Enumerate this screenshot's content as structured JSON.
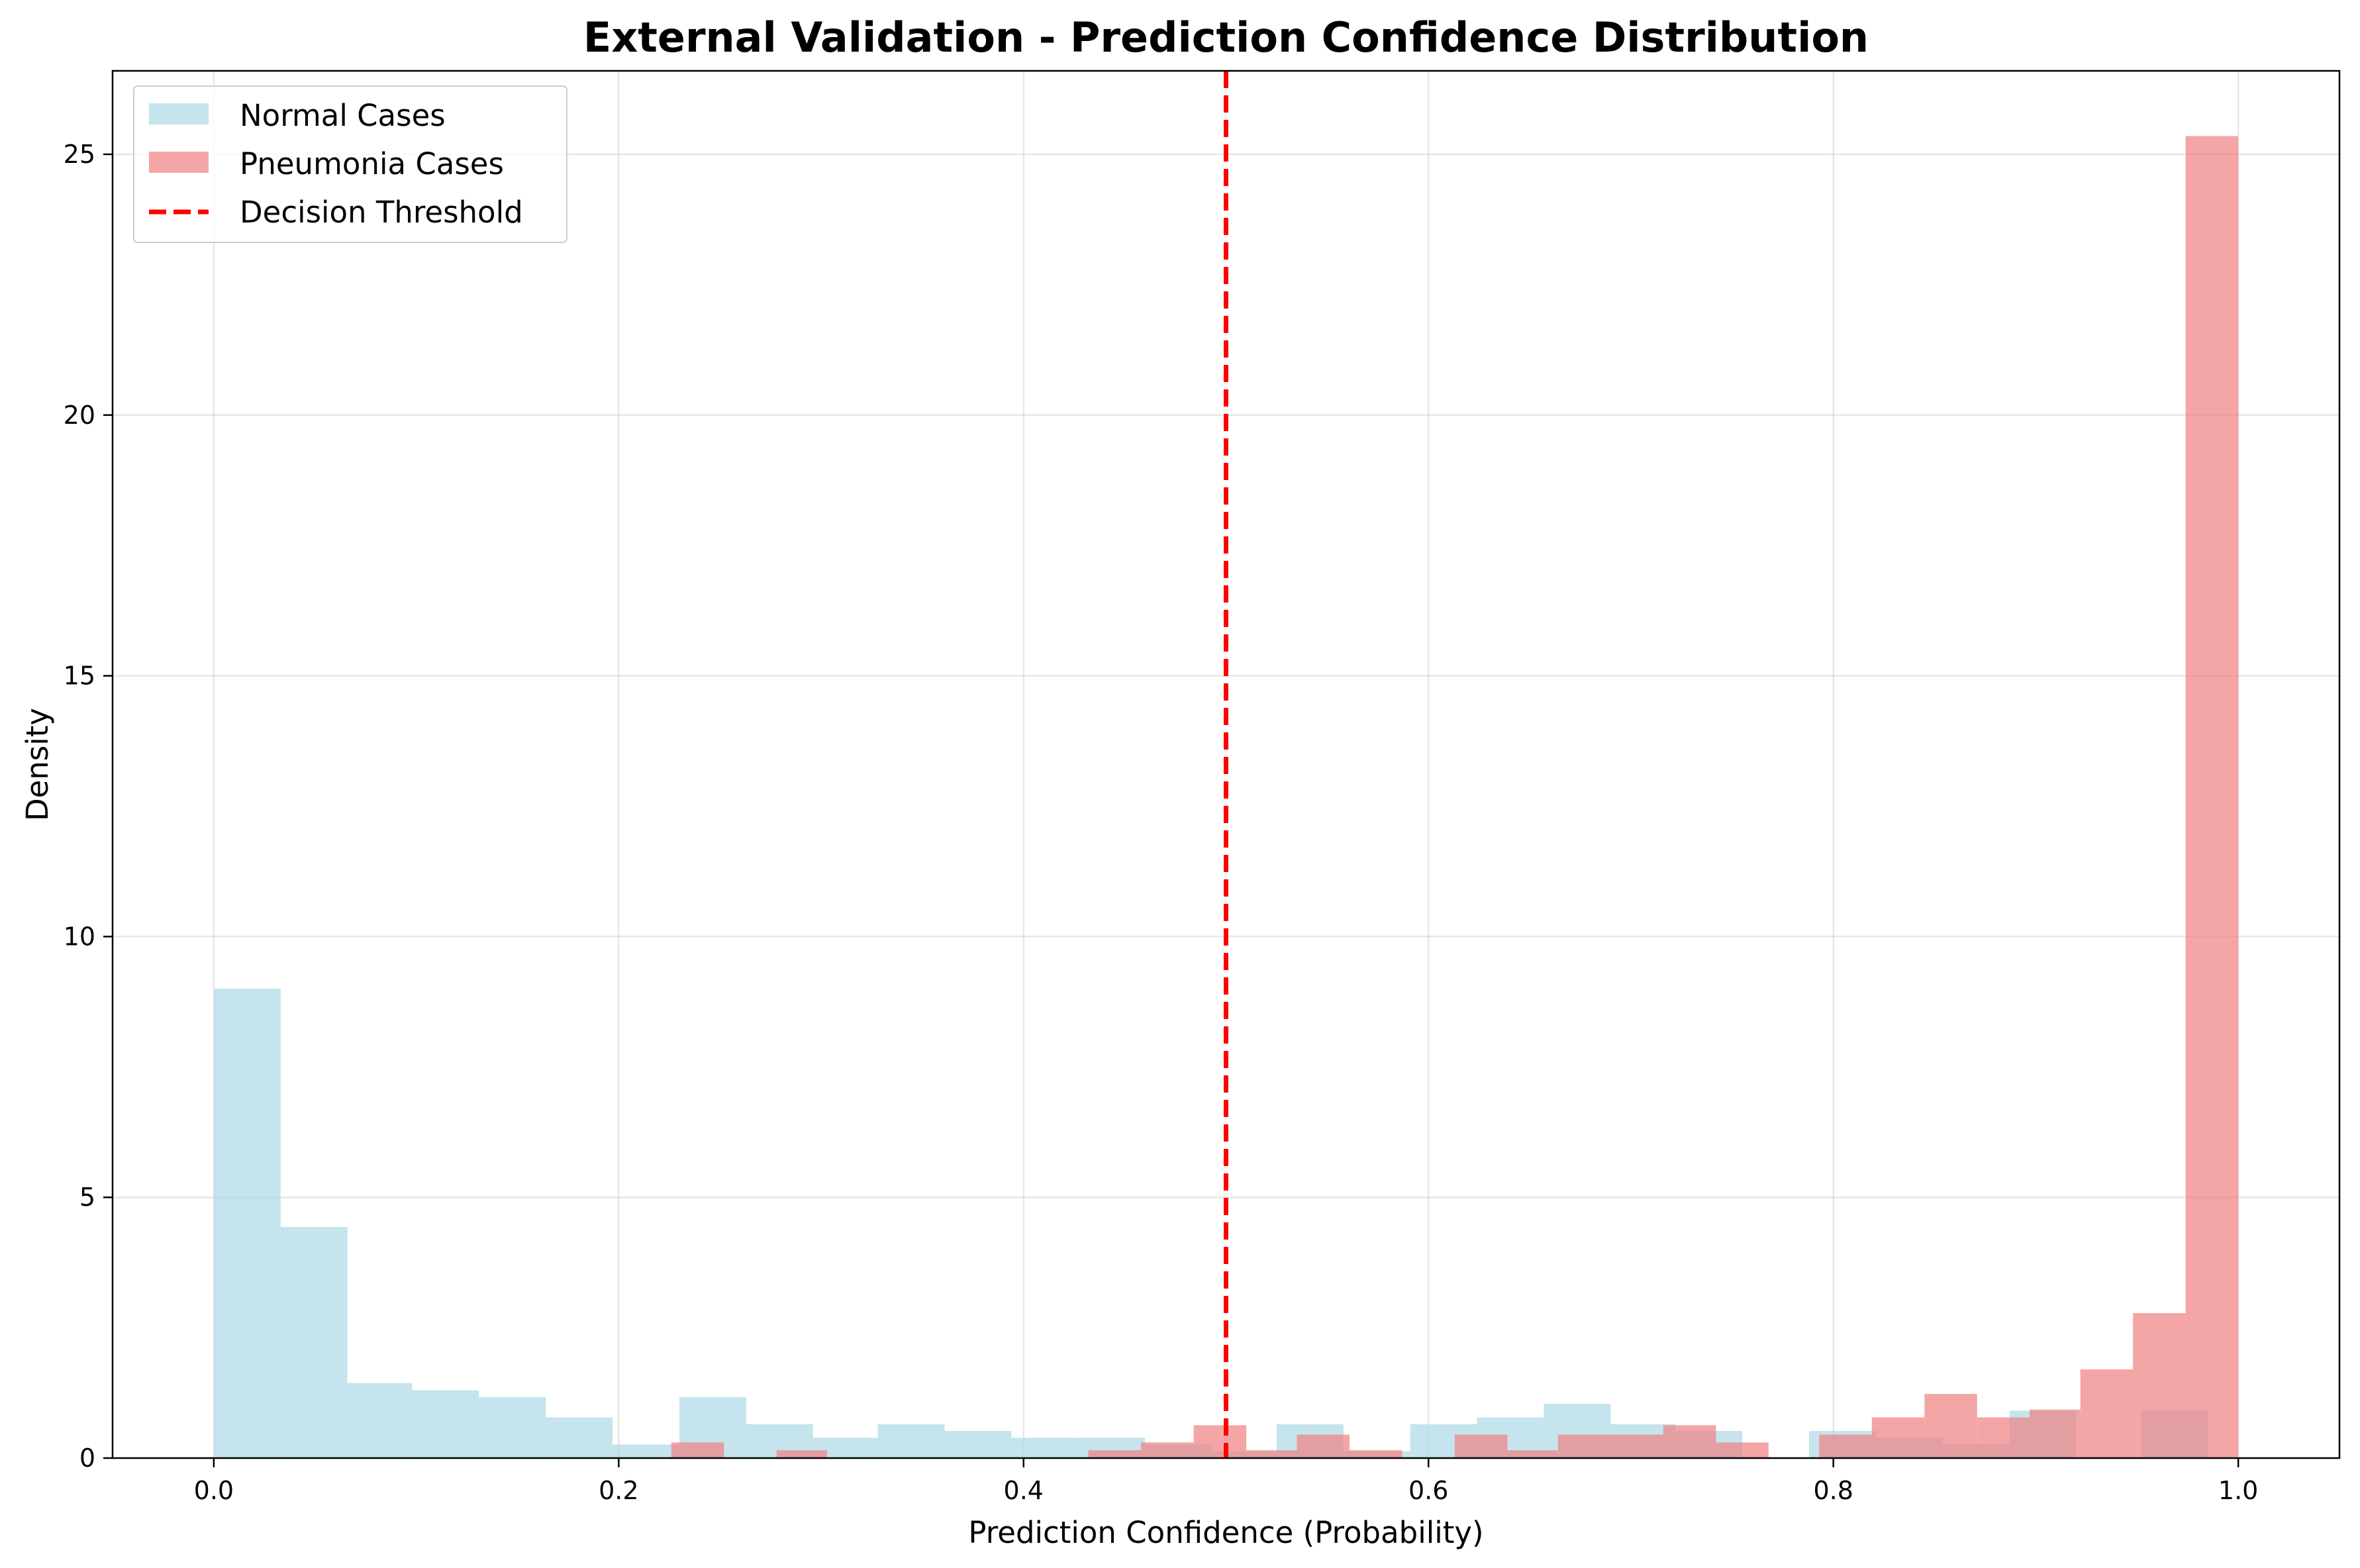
{
  "chart_data": {
    "type": "histogram",
    "title": "External Validation - Prediction Confidence Distribution",
    "xlabel": "Prediction Confidence (Probability)",
    "ylabel": "Density",
    "xlim": [
      -0.05,
      1.05
    ],
    "ylim": [
      0,
      26.6
    ],
    "xticks": [
      0.0,
      0.2,
      0.4,
      0.6,
      0.8,
      1.0
    ],
    "xtick_labels": [
      "0.0",
      "0.2",
      "0.4",
      "0.6",
      "0.8",
      "1.0"
    ],
    "yticks": [
      0,
      5,
      10,
      15,
      20,
      25
    ],
    "ytick_labels": [
      "0",
      "5",
      "10",
      "15",
      "20",
      "25"
    ],
    "grid": true,
    "legend_position": "top-left",
    "threshold": {
      "name": "Decision Threshold",
      "x": 0.5,
      "color": "#ff0000",
      "style": "dashed"
    },
    "series": [
      {
        "name": "Normal Cases",
        "color": "#add8e6",
        "opacity": 0.7,
        "bins": [
          [
            0.0,
            0.033,
            9.0
          ],
          [
            0.033,
            0.066,
            4.43
          ],
          [
            0.066,
            0.098,
            1.44
          ],
          [
            0.098,
            0.131,
            1.3
          ],
          [
            0.131,
            0.164,
            1.17
          ],
          [
            0.164,
            0.197,
            0.78
          ],
          [
            0.197,
            0.23,
            0.26
          ],
          [
            0.23,
            0.263,
            1.17
          ],
          [
            0.263,
            0.296,
            0.65
          ],
          [
            0.296,
            0.328,
            0.39
          ],
          [
            0.328,
            0.361,
            0.65
          ],
          [
            0.361,
            0.394,
            0.52
          ],
          [
            0.394,
            0.427,
            0.39
          ],
          [
            0.427,
            0.46,
            0.39
          ],
          [
            0.46,
            0.493,
            0.26
          ],
          [
            0.493,
            0.525,
            0.13
          ],
          [
            0.525,
            0.558,
            0.65
          ],
          [
            0.558,
            0.591,
            0.13
          ],
          [
            0.591,
            0.624,
            0.65
          ],
          [
            0.624,
            0.657,
            0.78
          ],
          [
            0.657,
            0.69,
            1.04
          ],
          [
            0.69,
            0.722,
            0.65
          ],
          [
            0.722,
            0.755,
            0.52
          ],
          [
            0.755,
            0.788,
            0.0
          ],
          [
            0.788,
            0.821,
            0.52
          ],
          [
            0.821,
            0.854,
            0.39
          ],
          [
            0.854,
            0.887,
            0.26
          ],
          [
            0.887,
            0.92,
            0.91
          ],
          [
            0.92,
            0.952,
            0.0
          ],
          [
            0.952,
            0.985,
            0.91
          ]
        ]
      },
      {
        "name": "Pneumonia Cases",
        "color": "#f08080",
        "opacity": 0.7,
        "bins": [
          [
            0.226,
            0.252,
            0.3
          ],
          [
            0.252,
            0.278,
            0.0
          ],
          [
            0.278,
            0.303,
            0.15
          ],
          [
            0.303,
            0.329,
            0.0
          ],
          [
            0.329,
            0.355,
            0.0
          ],
          [
            0.355,
            0.381,
            0.0
          ],
          [
            0.381,
            0.406,
            0.0
          ],
          [
            0.406,
            0.432,
            0.0
          ],
          [
            0.432,
            0.458,
            0.15
          ],
          [
            0.458,
            0.484,
            0.3
          ],
          [
            0.484,
            0.51,
            0.63
          ],
          [
            0.51,
            0.535,
            0.15
          ],
          [
            0.535,
            0.561,
            0.45
          ],
          [
            0.561,
            0.587,
            0.15
          ],
          [
            0.587,
            0.613,
            0.0
          ],
          [
            0.613,
            0.639,
            0.45
          ],
          [
            0.639,
            0.664,
            0.15
          ],
          [
            0.664,
            0.69,
            0.45
          ],
          [
            0.69,
            0.716,
            0.45
          ],
          [
            0.716,
            0.742,
            0.63
          ],
          [
            0.742,
            0.768,
            0.3
          ],
          [
            0.768,
            0.793,
            0.0
          ],
          [
            0.793,
            0.819,
            0.45
          ],
          [
            0.819,
            0.845,
            0.78
          ],
          [
            0.845,
            0.871,
            1.23
          ],
          [
            0.871,
            0.897,
            0.78
          ],
          [
            0.897,
            0.922,
            0.93
          ],
          [
            0.922,
            0.948,
            1.7
          ],
          [
            0.948,
            0.974,
            2.78
          ],
          [
            0.974,
            1.0,
            25.35
          ]
        ]
      }
    ]
  }
}
